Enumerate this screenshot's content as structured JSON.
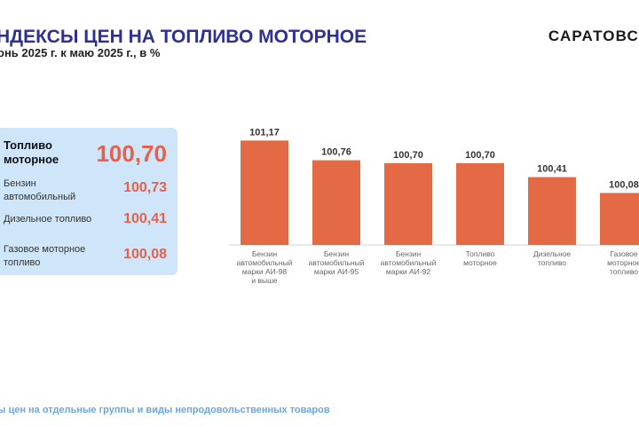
{
  "header": {
    "title": "ндексы цен на топливо моторное",
    "subtitle": "онь 2025 г. к маю 2025 г., в %",
    "region": "САРАТОВС"
  },
  "panel": {
    "items": [
      {
        "label": "Топливо моторное",
        "value": "100,70"
      },
      {
        "label": "Бензин автомобильный",
        "value": "100,73"
      },
      {
        "label": "Дизельное топливо",
        "value": "100,41"
      },
      {
        "label": "Газовое моторное топливо",
        "value": "100,08"
      }
    ]
  },
  "chart_data": {
    "type": "bar",
    "categories": [
      "Бензин автомобильный марки АИ-98 и выше",
      "Бензин автомобильный марки АИ-95",
      "Бензин автомобильный марки АИ-92",
      "Топливо моторное",
      "Дизельное топливо",
      "Газовое моторное топливо"
    ],
    "category_lines": [
      [
        "Бензин",
        "автомобильный",
        "марки АИ-98",
        "и выше"
      ],
      [
        "Бензин",
        "автомобильный",
        "марки АИ-95"
      ],
      [
        "Бензин",
        "автомобильный",
        "марки АИ-92"
      ],
      [
        "Топливо",
        "моторное"
      ],
      [
        "Дизельное",
        "топливо"
      ],
      [
        "Газовое",
        "моторное",
        "топливо"
      ]
    ],
    "values": [
      101.17,
      100.76,
      100.7,
      100.7,
      100.41,
      100.08
    ],
    "value_labels": [
      "101,17",
      "100,76",
      "100,70",
      "100,70",
      "100,41",
      "100,08"
    ],
    "ylim": [
      99.0,
      101.25
    ],
    "bar_color": "#e46a45",
    "grid": false,
    "legend": "none"
  },
  "footer": {
    "text": "ы цен на отдельные группы и виды непродовольственных товаров"
  }
}
